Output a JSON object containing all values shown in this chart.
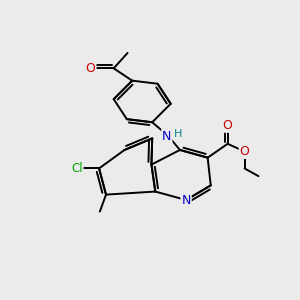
{
  "bg_color": "#ebebeb",
  "bond_color": "#000000",
  "bond_width": 1.4,
  "atom_colors": {
    "N": "#0000cc",
    "O": "#cc0000",
    "Cl": "#00aa00",
    "H": "#008888"
  },
  "font_size": 8.5,
  "fig_size": [
    3.0,
    3.0
  ],
  "dpi": 100
}
